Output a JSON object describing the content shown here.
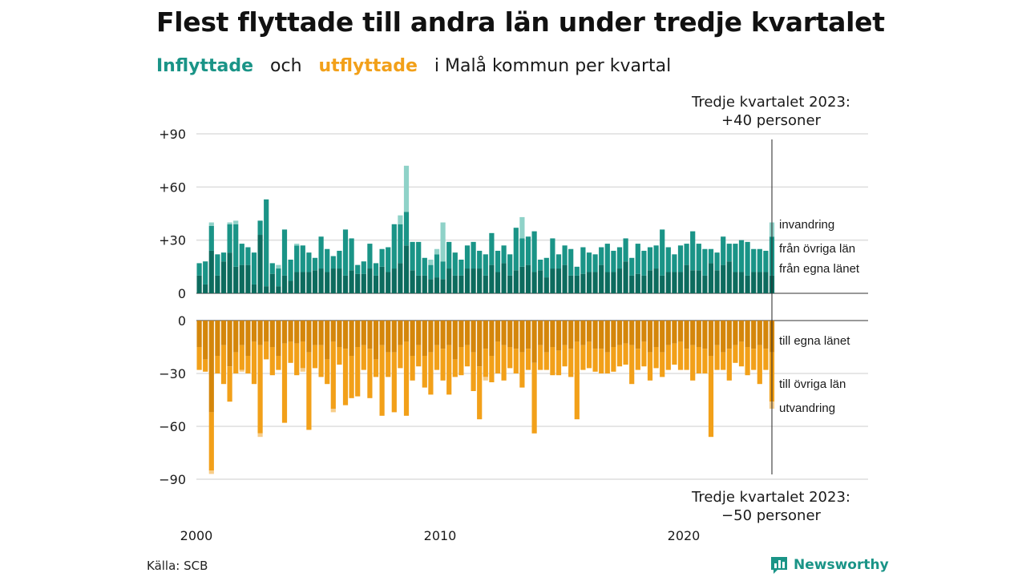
{
  "title": "Flest flyttade till andra län under tredje kvartalet",
  "subtitle": {
    "in_word": "Inflyttade",
    "and_word": "och",
    "out_word": "utflyttade",
    "rest": "i Malå kommun per kvartal"
  },
  "source": "Källa: SCB",
  "brand": {
    "name": "Newsworthy",
    "icon": "newsworthy-chart-icon"
  },
  "colors": {
    "in_own": "#0d6b5e",
    "in_other": "#1a9487",
    "in_immig": "#8fd2c8",
    "out_own": "#d4860b",
    "out_other": "#f2a019",
    "out_emig": "#f7cd8a",
    "grid": "#dddddd"
  },
  "chart_data": {
    "type": "bar",
    "stacked": true,
    "x_start": "2000 Q1",
    "x_end": "2023 Q3",
    "x_ticks": [
      "2000",
      "2010",
      "2020"
    ],
    "top_panel": {
      "ylim": [
        0,
        90
      ],
      "y_ticks": [
        0,
        30,
        60,
        90
      ],
      "y_tick_labels": [
        "0",
        "+30",
        "+60",
        "+90"
      ],
      "series": [
        {
          "name": "från egna länet",
          "values": [
            10,
            5,
            24,
            10,
            18,
            23,
            15,
            16,
            16,
            5,
            33,
            4,
            11,
            4,
            10,
            7,
            12,
            12,
            12,
            13,
            14,
            12,
            14,
            14,
            10,
            13,
            11,
            11,
            14,
            10,
            15,
            12,
            14,
            17,
            27,
            13,
            10,
            10,
            8,
            9,
            8,
            14,
            10,
            10,
            14,
            14,
            14,
            10,
            16,
            12,
            17,
            10,
            13,
            15,
            16,
            12,
            13,
            9,
            14,
            14,
            16,
            10,
            10,
            11,
            12,
            12,
            16,
            12,
            12,
            14,
            18,
            10,
            11,
            10,
            13,
            14,
            10,
            12,
            12,
            12,
            16,
            13,
            13,
            10,
            17,
            13,
            16,
            18,
            12,
            12,
            10,
            12,
            12,
            12,
            10
          ]
        },
        {
          "name": "från övriga län",
          "values": [
            7,
            13,
            14,
            12,
            5,
            16,
            24,
            12,
            10,
            18,
            8,
            49,
            6,
            10,
            26,
            12,
            15,
            15,
            11,
            7,
            18,
            13,
            7,
            10,
            26,
            18,
            5,
            7,
            14,
            7,
            10,
            14,
            25,
            22,
            19,
            16,
            19,
            10,
            8,
            13,
            10,
            15,
            13,
            9,
            13,
            15,
            10,
            12,
            18,
            12,
            10,
            12,
            24,
            16,
            16,
            23,
            6,
            11,
            17,
            8,
            11,
            15,
            5,
            15,
            11,
            10,
            10,
            16,
            12,
            12,
            13,
            10,
            17,
            14,
            13,
            13,
            26,
            14,
            10,
            15,
            12,
            22,
            15,
            15,
            8,
            10,
            16,
            10,
            16,
            18,
            19,
            13,
            13,
            12,
            22
          ]
        },
        {
          "name": "invandring",
          "values": [
            0,
            0,
            2,
            0,
            0,
            1,
            2,
            0,
            0,
            0,
            0,
            0,
            0,
            2,
            0,
            0,
            1,
            0,
            0,
            0,
            0,
            0,
            0,
            0,
            0,
            0,
            0,
            0,
            0,
            0,
            0,
            0,
            0,
            5,
            26,
            0,
            0,
            0,
            3,
            3,
            22,
            0,
            0,
            0,
            0,
            0,
            0,
            0,
            0,
            0,
            0,
            0,
            0,
            12,
            0,
            0,
            0,
            0,
            0,
            0,
            0,
            0,
            0,
            0,
            0,
            0,
            0,
            0,
            0,
            0,
            0,
            0,
            0,
            0,
            0,
            0,
            0,
            0,
            0,
            0,
            0,
            0,
            0,
            0,
            0,
            0,
            0,
            0,
            0,
            0,
            0,
            0,
            0,
            0,
            8
          ]
        }
      ],
      "annotation": "Tredje kvartalet 2023:\n+40 personer"
    },
    "bottom_panel": {
      "ylim": [
        -90,
        0
      ],
      "y_ticks": [
        0,
        -30,
        -60,
        -90
      ],
      "y_tick_labels": [
        "0",
        "−30",
        "−60",
        "−90"
      ],
      "series": [
        {
          "name": "till egna länet",
          "values": [
            -15,
            -22,
            -52,
            -20,
            -14,
            -26,
            -18,
            -14,
            -20,
            -12,
            -14,
            -12,
            -15,
            -20,
            -13,
            -12,
            -13,
            -12,
            -18,
            -14,
            -14,
            -22,
            -12,
            -15,
            -16,
            -20,
            -15,
            -14,
            -16,
            -22,
            -14,
            -18,
            -18,
            -14,
            -12,
            -20,
            -14,
            -20,
            -18,
            -14,
            -16,
            -14,
            -22,
            -15,
            -14,
            -18,
            -26,
            -16,
            -20,
            -12,
            -14,
            -15,
            -16,
            -18,
            -16,
            -24,
            -14,
            -18,
            -15,
            -17,
            -14,
            -16,
            -12,
            -14,
            -12,
            -16,
            -16,
            -18,
            -15,
            -14,
            -13,
            -14,
            -16,
            -12,
            -18,
            -15,
            -18,
            -14,
            -13,
            -12,
            -16,
            -14,
            -15,
            -16,
            -20,
            -14,
            -18,
            -16,
            -14,
            -12,
            -15,
            -16,
            -14,
            -16,
            -18
          ]
        },
        {
          "name": "till övriga län",
          "values": [
            -13,
            -7,
            -33,
            -10,
            -22,
            -20,
            -12,
            -14,
            -10,
            -24,
            -50,
            -10,
            -16,
            -8,
            -45,
            -12,
            -18,
            -15,
            -44,
            -13,
            -18,
            -14,
            -38,
            -10,
            -32,
            -24,
            -28,
            -14,
            -28,
            -10,
            -40,
            -14,
            -34,
            -13,
            -42,
            -14,
            -12,
            -18,
            -24,
            -14,
            -18,
            -28,
            -10,
            -16,
            -12,
            -22,
            -30,
            -16,
            -15,
            -18,
            -20,
            -12,
            -14,
            -20,
            -12,
            -40,
            -14,
            -10,
            -16,
            -14,
            -12,
            -16,
            -44,
            -14,
            -15,
            -13,
            -14,
            -12,
            -14,
            -12,
            -12,
            -22,
            -12,
            -14,
            -16,
            -12,
            -14,
            -14,
            -12,
            -16,
            -12,
            -20,
            -15,
            -14,
            -46,
            -14,
            -10,
            -18,
            -10,
            -14,
            -16,
            -12,
            -22,
            -12,
            -28
          ]
        },
        {
          "name": "utvandring",
          "values": [
            0,
            0,
            -2,
            0,
            0,
            0,
            0,
            -1,
            0,
            0,
            -2,
            0,
            0,
            0,
            0,
            0,
            0,
            -2,
            0,
            0,
            0,
            0,
            -2,
            0,
            0,
            0,
            0,
            0,
            0,
            0,
            0,
            0,
            0,
            0,
            0,
            0,
            0,
            0,
            0,
            0,
            0,
            0,
            0,
            0,
            0,
            0,
            0,
            -2,
            0,
            0,
            0,
            0,
            0,
            0,
            0,
            0,
            0,
            0,
            0,
            0,
            0,
            0,
            0,
            0,
            0,
            0,
            0,
            0,
            0,
            0,
            0,
            0,
            0,
            0,
            0,
            0,
            0,
            0,
            0,
            0,
            0,
            0,
            0,
            0,
            0,
            0,
            0,
            0,
            0,
            0,
            0,
            0,
            0,
            0,
            -4
          ]
        }
      ],
      "annotation": "Tredje kvartalet 2023:\n−50 personer"
    },
    "grid": true
  }
}
